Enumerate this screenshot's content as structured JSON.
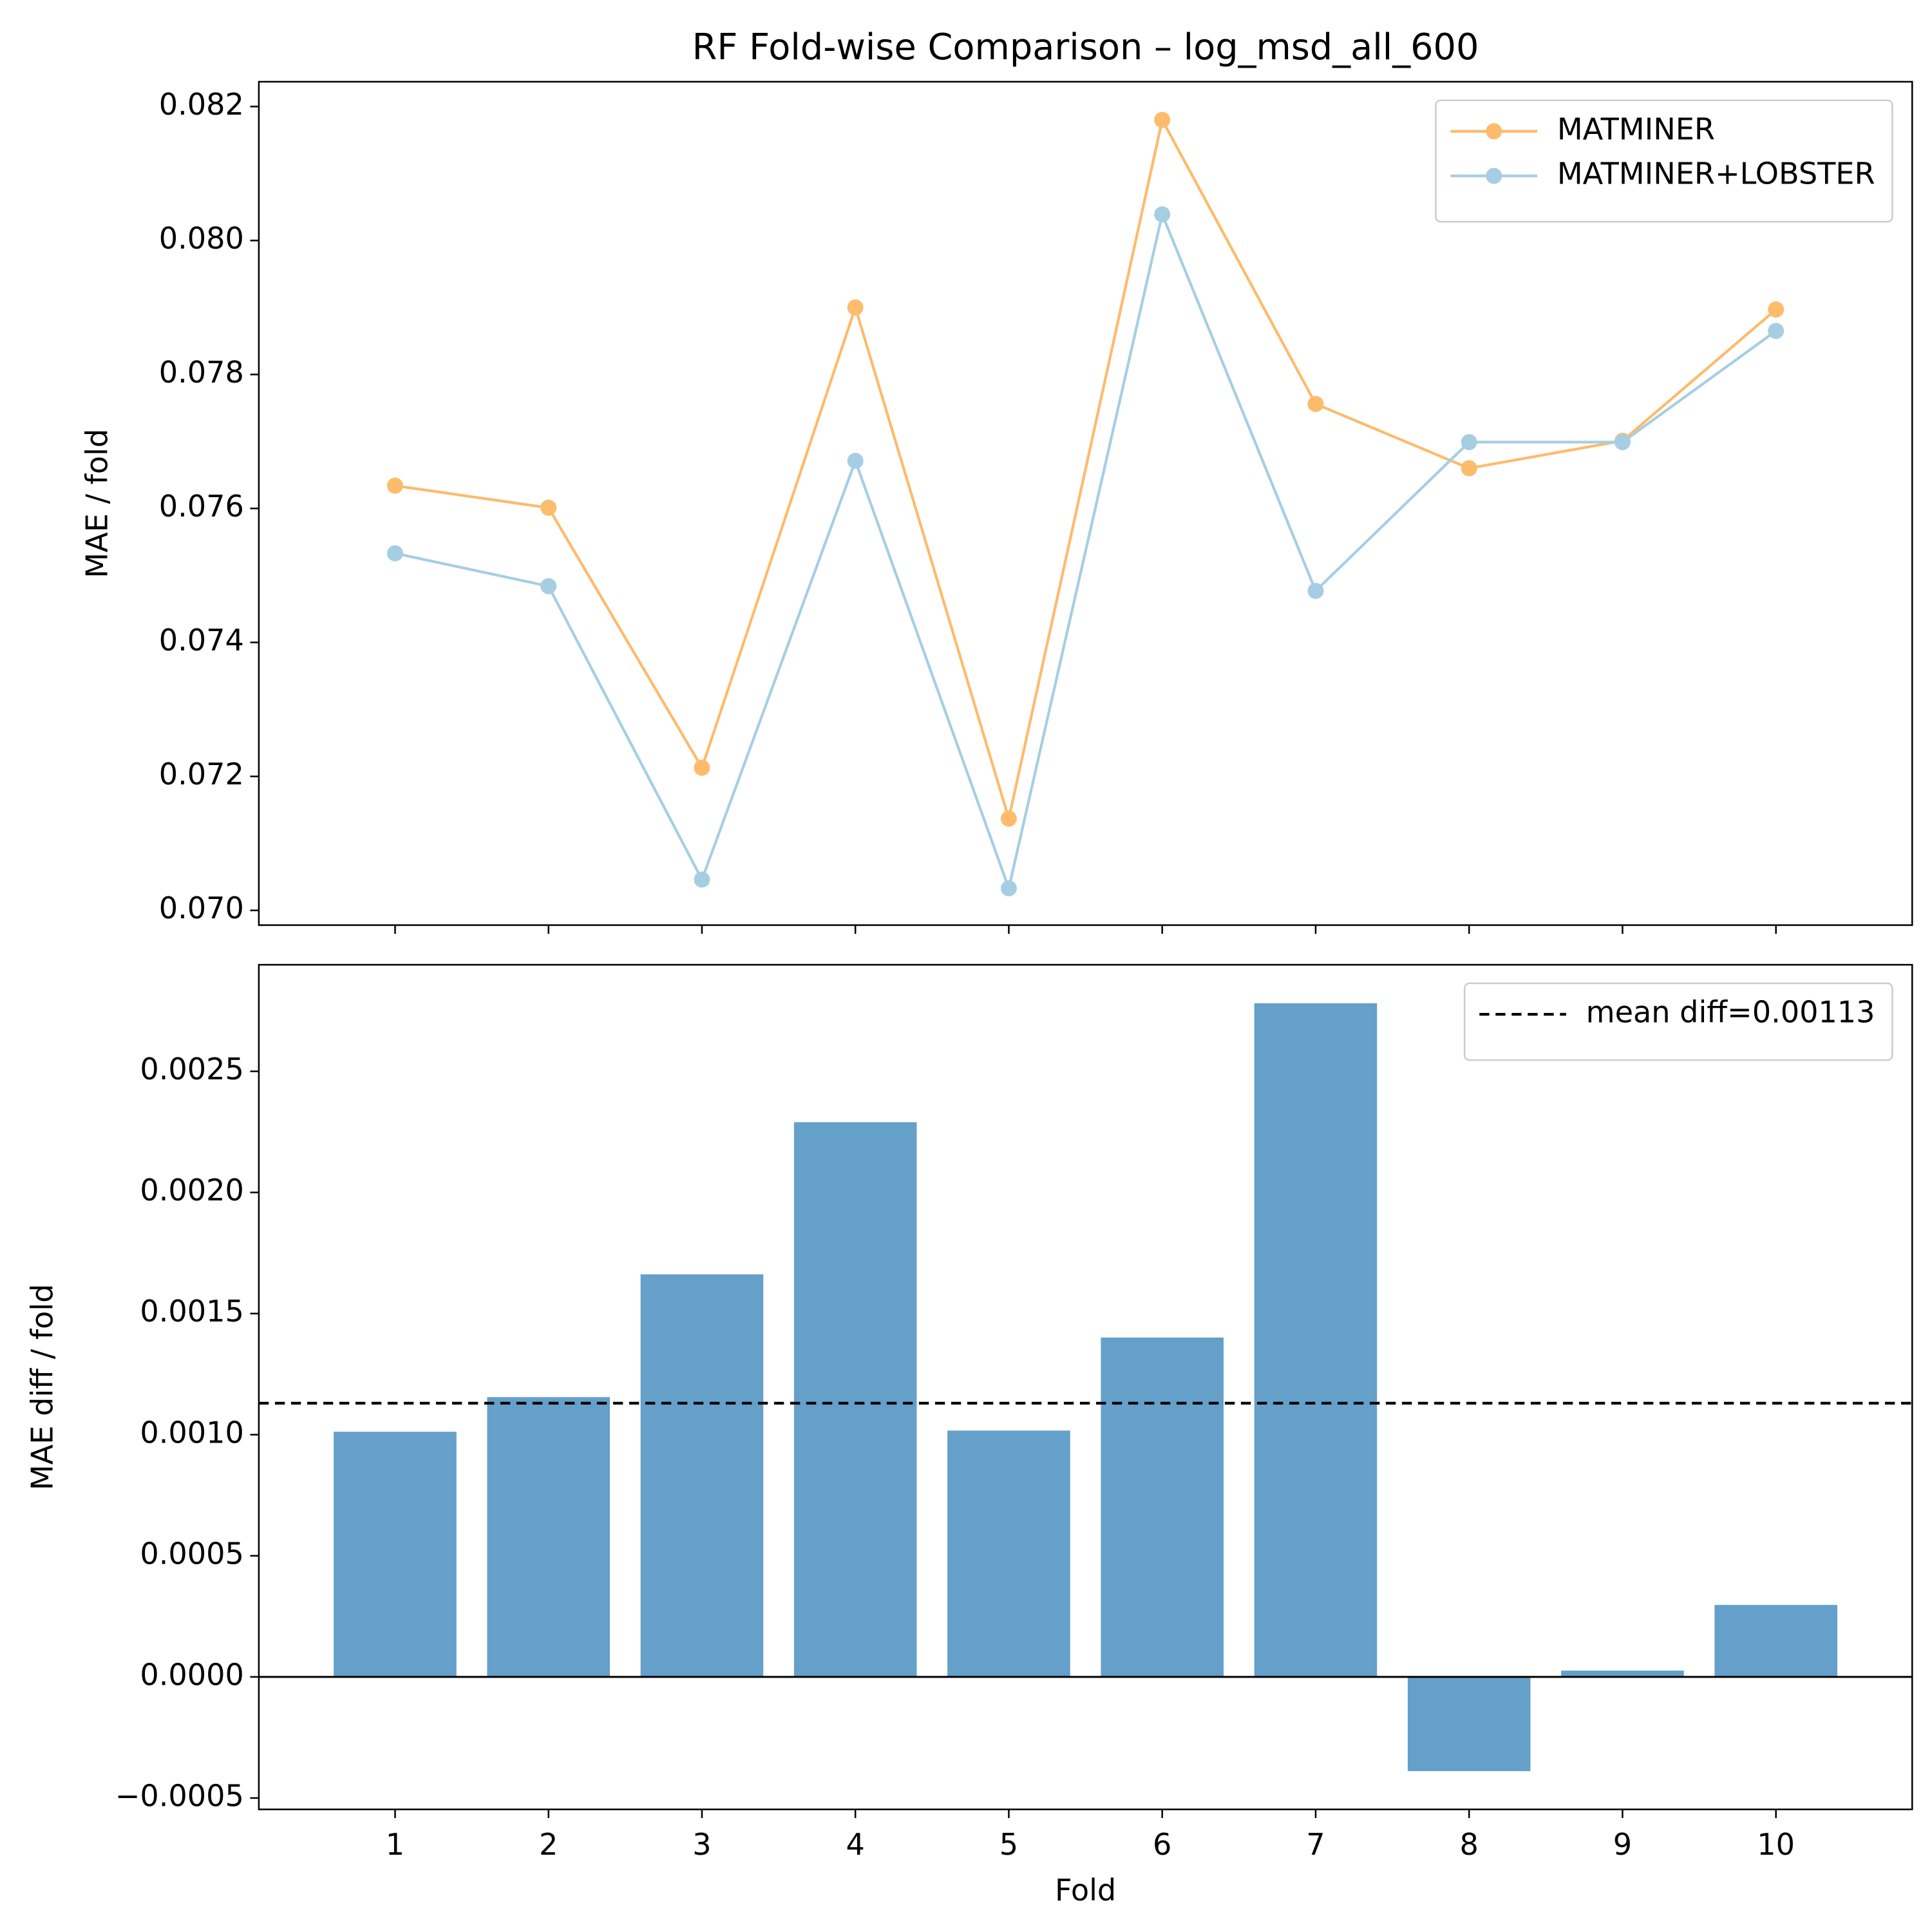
{
  "chart_data": [
    {
      "type": "line",
      "title": "RF Fold-wise Comparison – log_msd_all_600",
      "ylabel": "MAE / fold",
      "x": [
        1,
        2,
        3,
        4,
        5,
        6,
        7,
        8,
        9,
        10
      ],
      "series": [
        {
          "name": "MATMINER",
          "color": "#fdbb6c",
          "values": [
            0.07634,
            0.07601,
            0.07213,
            0.079,
            0.07137,
            0.0818,
            0.07756,
            0.0766,
            0.07701,
            0.07897
          ]
        },
        {
          "name": "MATMINER+LOBSTER",
          "color": "#a6cee3",
          "values": [
            0.07533,
            0.07484,
            0.07046,
            0.07671,
            0.07033,
            0.08039,
            0.07477,
            0.07699,
            0.07699,
            0.07865
          ]
        }
      ],
      "xlim": [
        0.112,
        10.888
      ],
      "xticks": [
        1,
        2,
        3,
        4,
        5,
        6,
        7,
        8,
        9,
        10
      ],
      "ylim": [
        0.06978,
        0.08237
      ],
      "yticks": [
        {
          "value": 0.07,
          "label": "0.070"
        },
        0.072,
        0.074,
        0.076,
        0.078,
        {
          "value": 0.08,
          "label": "0.080"
        },
        0.082
      ],
      "legend": "upper right"
    },
    {
      "type": "bar",
      "xlabel": "Fold",
      "ylabel": "MAE diff / fold",
      "color": "#64a0ca",
      "x": [
        1,
        2,
        3,
        4,
        5,
        6,
        7,
        8,
        9,
        10
      ],
      "values": [
        0.001012,
        0.001155,
        0.001662,
        0.00229,
        0.001017,
        0.001401,
        0.002781,
        -0.000389,
        2.6e-05,
        0.000297
      ],
      "hlines": [
        {
          "value": 0.00113,
          "label": "mean diff=0.00113",
          "color": "#000000",
          "style": "dashed"
        }
      ],
      "xlim": [
        0.112,
        10.888
      ],
      "xticks": [
        1,
        2,
        3,
        4,
        5,
        6,
        7,
        8,
        9,
        10
      ],
      "ylim": [
        -0.000547,
        0.00294
      ],
      "yticks": [
        {
          "value": -0.0005,
          "label": "−0.0005"
        },
        {
          "value": 0,
          "label": "0.0000"
        },
        0.0005,
        {
          "value": 0.001,
          "label": "0.0010"
        },
        0.0015,
        {
          "value": 0.002,
          "label": "0.0020"
        },
        0.0025
      ],
      "legend": "upper right"
    }
  ]
}
